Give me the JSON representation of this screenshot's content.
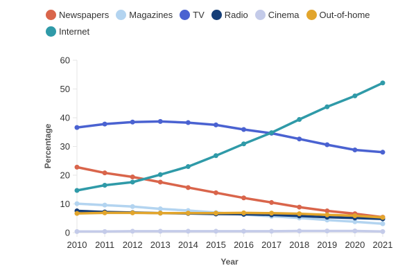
{
  "chart_data": {
    "type": "line",
    "title": "",
    "xlabel": "Year",
    "ylabel": "Percentage",
    "ylim": [
      0,
      60
    ],
    "yticks": [
      0,
      10,
      20,
      30,
      40,
      50,
      60
    ],
    "grid": false,
    "legend_position": "top-left",
    "x": [
      "2010",
      "2011",
      "2012",
      "2013",
      "2014",
      "2015",
      "2016",
      "2017",
      "2018",
      "2019",
      "2020",
      "2021"
    ],
    "series": [
      {
        "name": "Newspapers",
        "color": "#d9654b",
        "values": [
          22.8,
          20.8,
          19.4,
          17.6,
          15.7,
          13.9,
          12.1,
          10.5,
          8.9,
          7.6,
          6.6,
          5.4
        ]
      },
      {
        "name": "Magazines",
        "color": "#b3d4f0",
        "values": [
          10.1,
          9.6,
          9.1,
          8.3,
          7.7,
          7.0,
          6.3,
          5.7,
          5.1,
          4.4,
          3.8,
          3.1
        ]
      },
      {
        "name": "TV",
        "color": "#4a62d1",
        "values": [
          36.6,
          37.8,
          38.5,
          38.7,
          38.3,
          37.5,
          35.9,
          34.6,
          32.6,
          30.6,
          28.8,
          28.0
        ]
      },
      {
        "name": "Radio",
        "color": "#153e78",
        "values": [
          7.6,
          7.2,
          7.0,
          6.8,
          6.7,
          6.5,
          6.4,
          6.2,
          5.8,
          5.4,
          5.1,
          4.8
        ]
      },
      {
        "name": "Cinema",
        "color": "#c4cbe9",
        "values": [
          0.4,
          0.4,
          0.5,
          0.5,
          0.5,
          0.5,
          0.5,
          0.5,
          0.6,
          0.6,
          0.6,
          0.4
        ]
      },
      {
        "name": "Out-of-home",
        "color": "#e2a52c",
        "values": [
          6.7,
          6.9,
          6.9,
          6.8,
          6.8,
          6.8,
          6.9,
          6.8,
          6.6,
          6.2,
          5.9,
          5.3
        ]
      },
      {
        "name": "Internet",
        "color": "#2f9aa8",
        "values": [
          14.7,
          16.5,
          17.6,
          20.2,
          23.0,
          26.8,
          30.9,
          34.8,
          39.4,
          43.8,
          47.6,
          52.1
        ]
      }
    ]
  }
}
